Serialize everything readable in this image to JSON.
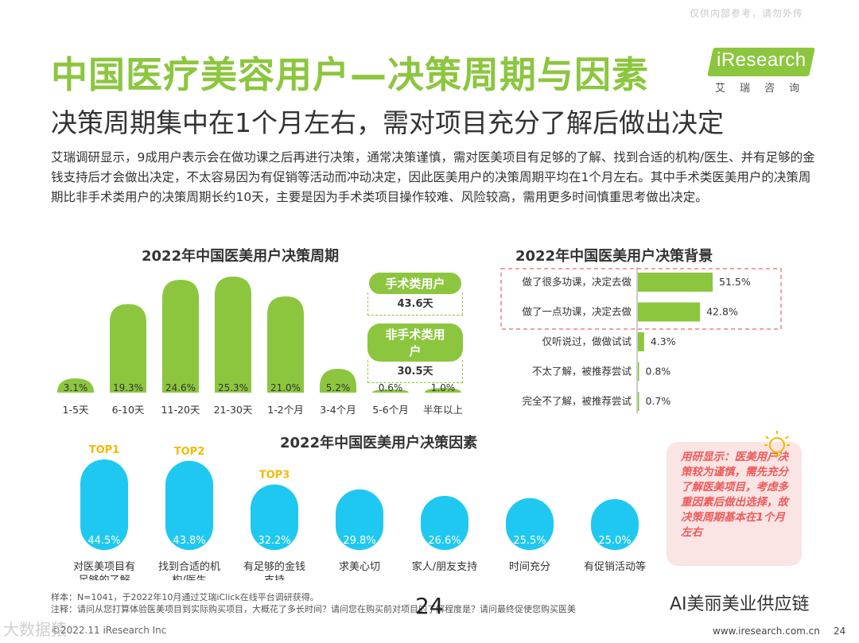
{
  "watermark_top": "仅供内部参考，请勿外传",
  "title": "中国医疗美容用户—决策周期与因素",
  "subtitle": "决策周期集中在1个月左右，需对项目充分了解后做出决定",
  "intro": "艾瑞调研显示，9成用户表示会在做功课之后再进行决策，通常决策谨慎，需对医美项目有足够的了解、找到合适的机构/医生、并有足够的金钱支持后才会做出决定，不太容易因为有促销等活动而冲动决定，因此医美用户的决策周期平均在1个月左右。其中手术类医美用户的决策周期比非手术类用户的决策周期长约10天，主要是因为手术类项目操作较难、风险较高，需用更多时间慎重思考做出决定。",
  "logo": {
    "brand": "iResearch",
    "sub": "艾瑞咨询"
  },
  "stats": {
    "surgical_label": "手术类用户",
    "surgical_value": "43.6天",
    "nonsurgical_label": "非手术类用户",
    "nonsurgical_value": "30.5天"
  },
  "callout": "用研显示：医美用户决策较为谨慎，需先充分了解医美项目，考虑多重因素后做出选择，故决策周期基本在1个月左右",
  "footnote1": "样本：N=1041，于2022年10月通过艾瑞iClick在线平台调研获得。",
  "footnote2": "注释：请问从您打算体验医美项目到实际购买项目，大概花了多长时间？请问您在购买前对项目的了解程度是？请问最终促使您购买医美",
  "page_number": "24",
  "copyright": "©2022.11 iResearch Inc",
  "website": "www.iresearch.com.cn",
  "page_small": "24",
  "watermark_right": "AI美丽美业供应链",
  "watermark_left": "大数据猿",
  "colors": {
    "green": "#8cc63f",
    "cyan": "#1fc8f0",
    "gold": "#f5b800",
    "pink": "#fbe4e4",
    "red": "#ee5a5a"
  },
  "chart_data": [
    {
      "type": "bar",
      "title": "2022年中国医美用户决策周期",
      "categories": [
        "1-5天",
        "6-10天",
        "11-20天",
        "21-30天",
        "1-2个月",
        "3-4个月",
        "5-6个月",
        "半年以上"
      ],
      "values": [
        3.1,
        19.3,
        24.6,
        25.3,
        21.0,
        5.2,
        0.6,
        1.0
      ],
      "labels": [
        "3.1%",
        "19.3%",
        "24.6%",
        "25.3%",
        "21.0%",
        "5.2%",
        "0.6%",
        "1.0%"
      ],
      "unit": "%"
    },
    {
      "type": "bar",
      "orientation": "horizontal",
      "title": "2022年中国医美用户决策背景",
      "categories": [
        "做了很多功课，决定去做",
        "做了一点功课，决定去做",
        "仅听说过，做做试试",
        "不太了解，被推荐尝试",
        "完全不了解，被推荐尝试"
      ],
      "values": [
        51.5,
        42.8,
        4.3,
        0.8,
        0.7
      ],
      "labels": [
        "51.5%",
        "42.8%",
        "4.3%",
        "0.8%",
        "0.7%"
      ],
      "unit": "%"
    },
    {
      "type": "bar",
      "title": "2022年中国医美用户决策因素",
      "categories": [
        "对医美项目有足够的了解",
        "找到合适的机构/医生",
        "有足够的金钱支持",
        "求美心切",
        "家人/朋友支持",
        "时间充分",
        "有促销活动等"
      ],
      "category_lines": [
        [
          "对医美项目有",
          "足够的了解"
        ],
        [
          "找到合适的机",
          "构/医生"
        ],
        [
          "有足够的金钱",
          "支持"
        ],
        [
          "求美心切"
        ],
        [
          "家人/朋友支持"
        ],
        [
          "时间充分"
        ],
        [
          "有促销活动等"
        ]
      ],
      "values": [
        44.5,
        43.8,
        32.2,
        29.8,
        26.6,
        25.5,
        25.0
      ],
      "labels": [
        "44.5%",
        "43.8%",
        "32.2%",
        "29.8%",
        "26.6%",
        "25.5%",
        "25.0%"
      ],
      "top_badges": [
        "TOP1",
        "TOP2",
        "TOP3"
      ],
      "unit": "%"
    }
  ]
}
